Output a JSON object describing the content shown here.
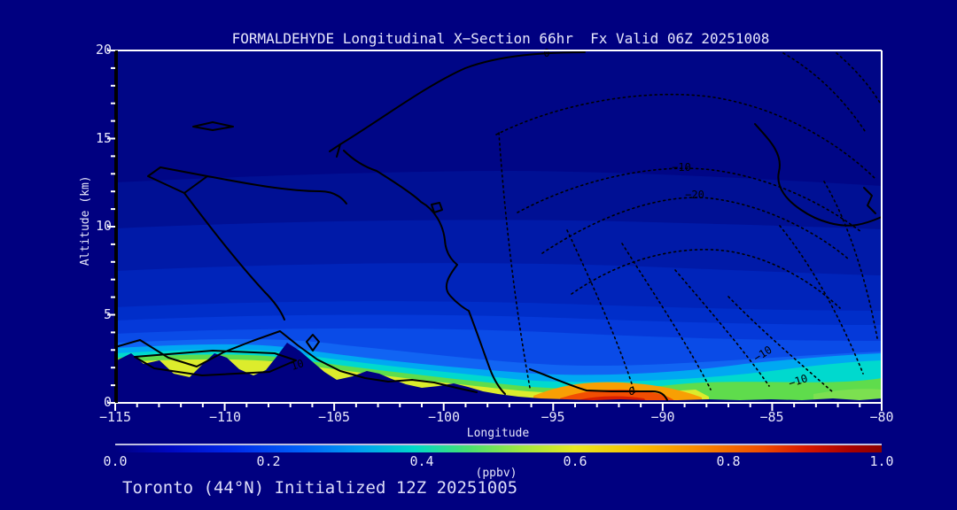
{
  "title": "FORMALDEHYDE Longitudinal X−Section 66hr  Fx Valid 06Z 20251008",
  "caption": "Toronto (44°N) Initialized 12Z 20251005",
  "meta": {
    "species": "FORMALDEHYDE",
    "forecast_hour": "66hr",
    "valid": "06Z 20251008",
    "station": "Toronto (44°N)",
    "initialized": "12Z 20251005"
  },
  "axes": {
    "x": {
      "label": "Longitude",
      "ticks": [
        "−115",
        "−110",
        "−105",
        "−100",
        "−95",
        "−90",
        "−85",
        "−80"
      ]
    },
    "y": {
      "label": "Altitude (km)",
      "ticks": [
        "0",
        "5",
        "10",
        "15",
        "20"
      ]
    }
  },
  "colorbar": {
    "units": "(ppbv)",
    "ticks": [
      "0.0",
      "0.2",
      "0.4",
      "0.6",
      "0.8",
      "1.0"
    ]
  },
  "contour_labels": [
    {
      "text": "0"
    },
    {
      "text": "10"
    },
    {
      "text": "0"
    },
    {
      "text": "−10"
    },
    {
      "text": "−20"
    },
    {
      "text": "−10"
    },
    {
      "text": "−10"
    }
  ],
  "chart_data": {
    "type": "heatmap",
    "subtype": "filled-contour longitudinal cross-section with line-contour overlay",
    "title": "FORMALDEHYDE Longitudinal X−Section 66hr  Fx Valid 06Z 20251008",
    "xlabel": "Longitude",
    "ylabel": "Altitude (km)",
    "xlim": [
      -115,
      -80
    ],
    "ylim": [
      0,
      20
    ],
    "x_ticks": [
      -115,
      -110,
      -105,
      -100,
      -95,
      -90,
      -85,
      -80
    ],
    "y_ticks": [
      0,
      5,
      10,
      15,
      20
    ],
    "fill_units": "ppbv",
    "fill_range": [
      0.0,
      1.0
    ],
    "fill_interval": 0.05,
    "colorbar_ticks": [
      0.0,
      0.2,
      0.4,
      0.6,
      0.8,
      1.0
    ],
    "colorbar_colors": [
      "#000080",
      "#0028E8",
      "#00A0F0",
      "#48E070",
      "#E8E820",
      "#F88800",
      "#D81800",
      "#8B0000"
    ],
    "background_band_values_ppbv": [
      {
        "altitude_km": [
          13,
          20
        ],
        "value": 0.03
      },
      {
        "altitude_km": [
          10.3,
          13
        ],
        "value": 0.08
      },
      {
        "altitude_km": [
          7.8,
          10.3
        ],
        "value": 0.12
      },
      {
        "altitude_km": [
          5.7,
          7.8
        ],
        "value": 0.17
      },
      {
        "altitude_km": [
          4.9,
          5.7
        ],
        "value": 0.22
      },
      {
        "altitude_km": [
          4.0,
          4.9
        ],
        "value": 0.27
      },
      {
        "altitude_km": [
          3.5,
          4.0
        ],
        "value": 0.32
      },
      {
        "altitude_km": [
          3.0,
          3.5
        ],
        "value": 0.38
      }
    ],
    "near_surface_max": {
      "longitude": -92,
      "altitude_km": 0.3,
      "value_ppbv": 0.95
    },
    "near_surface_values_ppbv": [
      {
        "longitude": -115,
        "value": 0.45
      },
      {
        "longitude": -110,
        "value": 0.5
      },
      {
        "longitude": -106,
        "value": 0.55
      },
      {
        "longitude": -103,
        "value": 0.5
      },
      {
        "longitude": -99,
        "value": 0.6
      },
      {
        "longitude": -96,
        "value": 0.65
      },
      {
        "longitude": -93,
        "value": 0.85
      },
      {
        "longitude": -92,
        "value": 0.95
      },
      {
        "longitude": -90,
        "value": 0.6
      },
      {
        "longitude": -87,
        "value": 0.4
      },
      {
        "longitude": -84,
        "value": 0.35
      },
      {
        "longitude": -81,
        "value": 0.45
      }
    ],
    "terrain_profile_km": [
      {
        "longitude": -115,
        "elev": 2.4
      },
      {
        "longitude": -113.5,
        "elev": 2.8
      },
      {
        "longitude": -112.5,
        "elev": 1.7
      },
      {
        "longitude": -110.5,
        "elev": 2.8
      },
      {
        "longitude": -109,
        "elev": 1.6
      },
      {
        "longitude": -107.2,
        "elev": 3.4
      },
      {
        "longitude": -105.8,
        "elev": 1.3
      },
      {
        "longitude": -104,
        "elev": 1.1
      },
      {
        "longitude": -102.5,
        "elev": 1.2
      },
      {
        "longitude": -100,
        "elev": 0.5
      },
      {
        "longitude": -97.5,
        "elev": 0.3
      },
      {
        "longitude": -95,
        "elev": 0.2
      },
      {
        "longitude": -90,
        "elev": 0.15
      },
      {
        "longitude": -85,
        "elev": 0.2
      },
      {
        "longitude": -80,
        "elev": 0.25
      }
    ],
    "overlay_contour_labels": [
      "0",
      "10",
      "−10",
      "−20"
    ],
    "overlay_contour_style": {
      "solid": "values >= 0",
      "dotted": "negative values"
    },
    "legend_position": "bottom colorbar",
    "grid": false
  }
}
